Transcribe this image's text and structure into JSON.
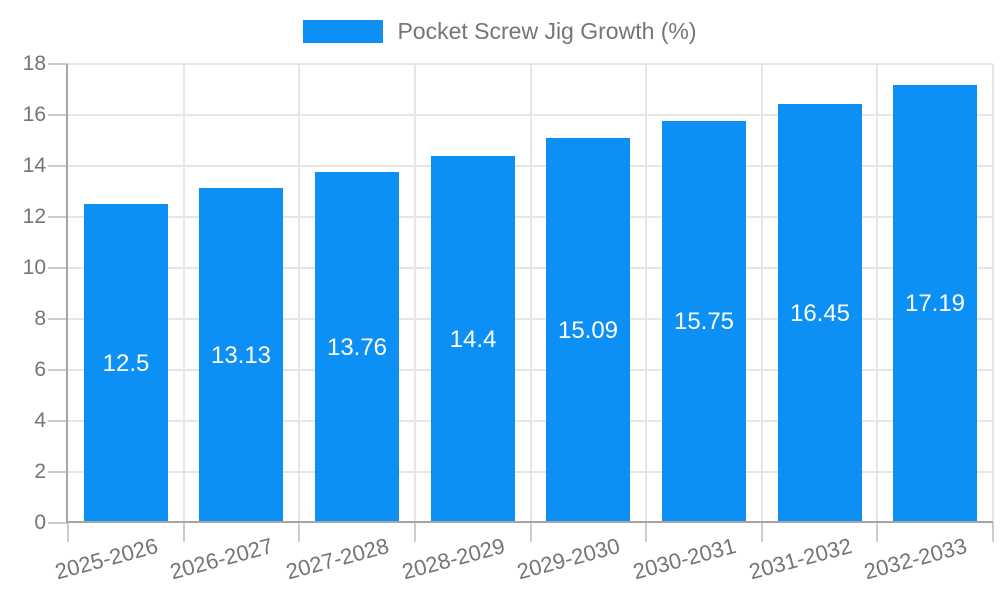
{
  "chart_data": {
    "type": "bar",
    "title": "",
    "legend_position": "top-center",
    "categories": [
      "2025-2026",
      "2026-2027",
      "2027-2028",
      "2028-2029",
      "2029-2030",
      "2030-2031",
      "2031-2032",
      "2032-2033"
    ],
    "series": [
      {
        "name": "Pocket Screw Jig Growth (%)",
        "values": [
          12.5,
          13.13,
          13.76,
          14.4,
          15.09,
          15.75,
          16.45,
          17.19
        ],
        "color": "#0d90f6"
      }
    ],
    "value_labels": [
      "12.5",
      "13.13",
      "13.76",
      "14.4",
      "15.09",
      "15.75",
      "16.45",
      "17.19"
    ],
    "xlabel": "",
    "ylabel": "",
    "ylim": [
      0,
      18
    ],
    "yticks": [
      0,
      2,
      4,
      6,
      8,
      10,
      12,
      14,
      16,
      18
    ],
    "grid": "horizontal-and-vertical",
    "x_label_rotation_deg": -15,
    "colors": {
      "bar": "#0d90f6",
      "grid": "#e6e6e6",
      "axis": "#a6a6a6",
      "tick": "#cccccc",
      "axis_label": "#757575",
      "legend_text": "#757575",
      "data_label": "#ffffff",
      "background": "#ffffff"
    }
  }
}
